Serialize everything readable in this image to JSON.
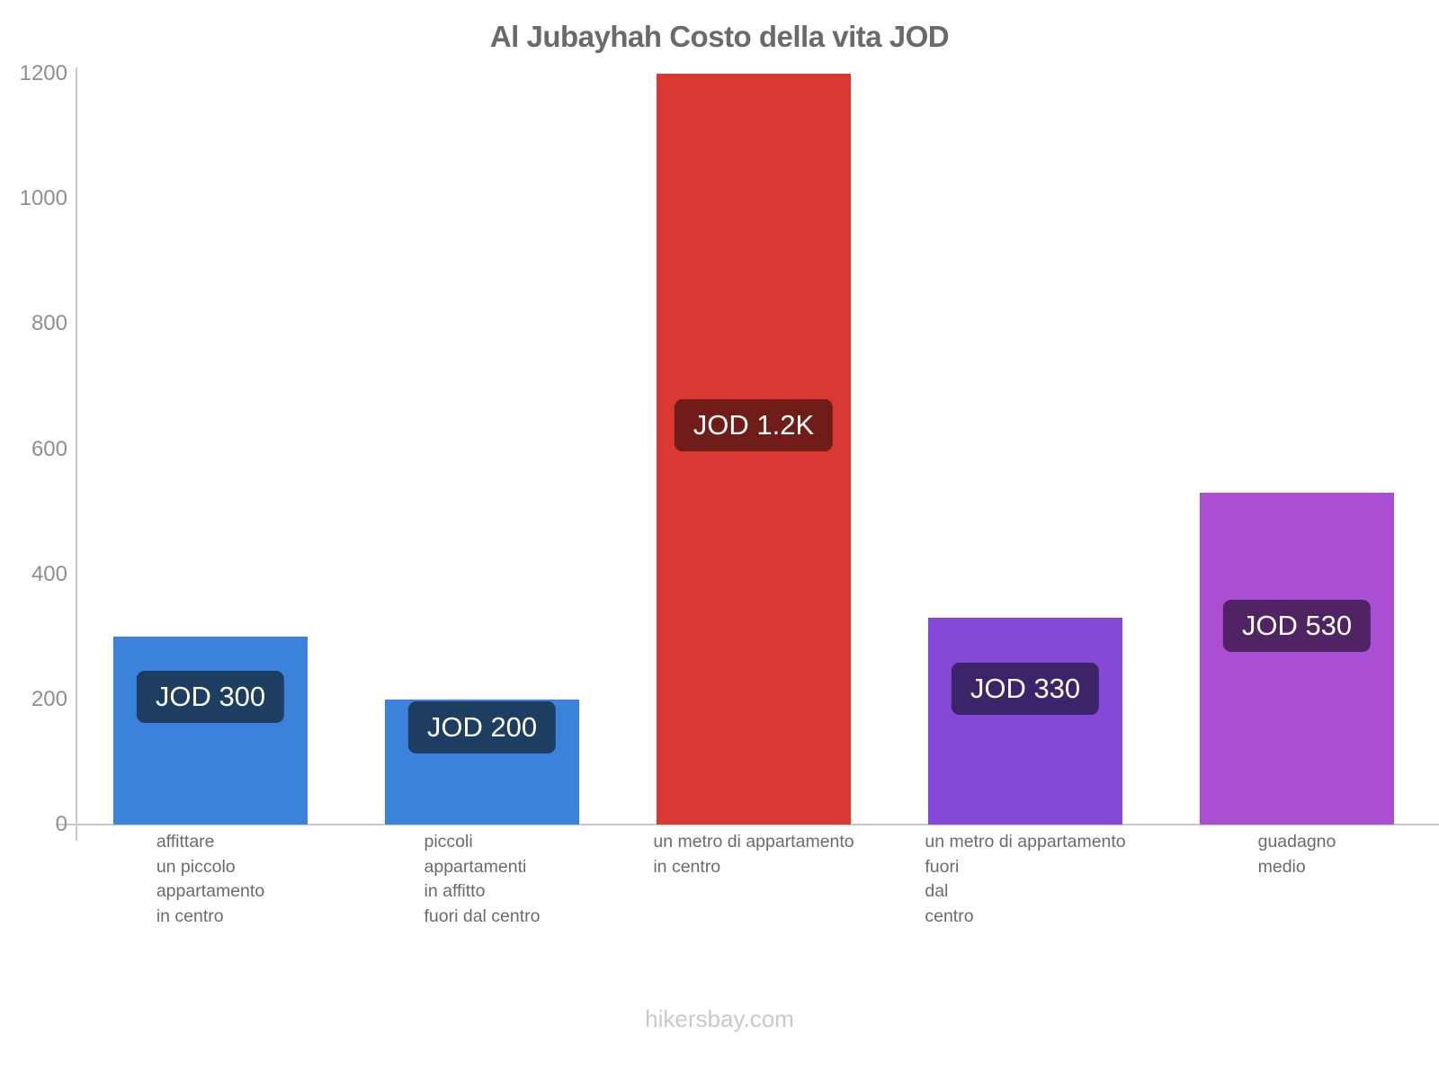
{
  "title": "Al Jubayhah Costo della vita JOD",
  "footer": "hikersbay.com",
  "chart_data": {
    "type": "bar",
    "title": "Al Jubayhah Costo della vita JOD",
    "currency": "JOD",
    "categories": [
      "affittare\nun piccolo\nappartamento\nin centro",
      "piccoli\nappartamenti\nin affitto\nfuori dal centro",
      "un metro di appartamento\nin centro",
      "un metro di appartamento\nfuori\ndal\ncentro",
      "guadagno\nmedio"
    ],
    "values": [
      300,
      200,
      1200,
      330,
      530
    ],
    "bar_labels": [
      "JOD 300",
      "JOD 200",
      "JOD 1.2K",
      "JOD 330",
      "JOD 530"
    ],
    "bar_colors": [
      "#3a82dc",
      "#3a82dc",
      "#da3832",
      "#8349d6",
      "#aa4fd2"
    ],
    "badge_colors": [
      "#1d3e61",
      "#1d3e61",
      "#701d1a",
      "#3b2468",
      "#502363"
    ],
    "badge_top_offsets": [
      38,
      2,
      362,
      50,
      119
    ],
    "xlabel": "",
    "ylabel": "",
    "ylim": [
      0,
      1200
    ],
    "yticks": [
      0,
      200,
      400,
      600,
      800,
      1000,
      1200
    ],
    "grid": false,
    "legend": "none"
  },
  "colors": {
    "axis": "#c9c9c9",
    "tick_label": "#8f8f8f",
    "title": "#6a6a6a",
    "category_label": "#6b6b6b",
    "footer": "#c6c9ce",
    "badge_text": "#ffffff",
    "background": "#ffffff"
  }
}
